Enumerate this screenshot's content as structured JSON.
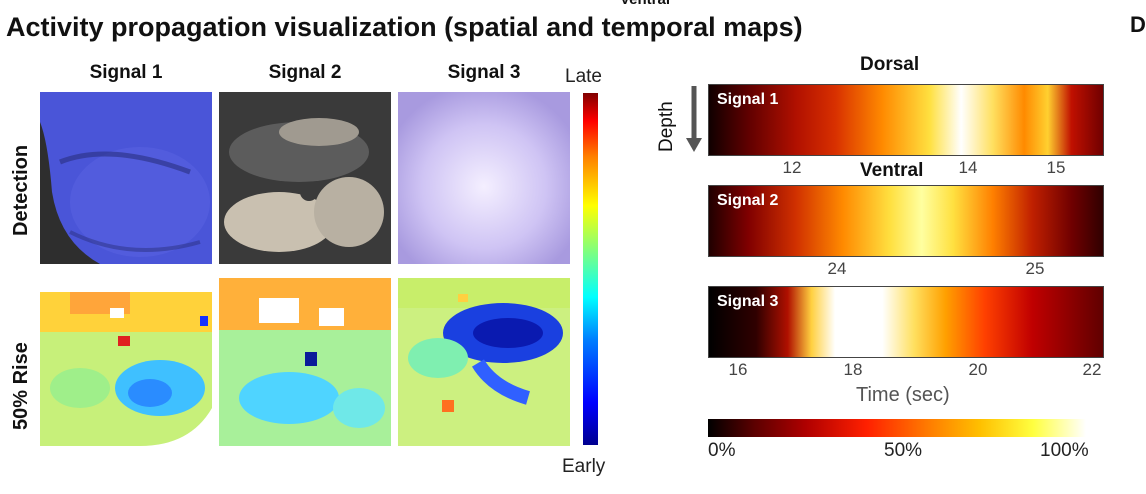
{
  "figure": {
    "title": "Activity propagation visualization (spatial and temporal maps)",
    "clipped_top_text": "Ventral",
    "clipped_right_text": "D"
  },
  "spatial": {
    "columns": [
      "Signal 1",
      "Signal 2",
      "Signal 3"
    ],
    "rows": [
      "Detection",
      "50% Rise"
    ],
    "colorbar": {
      "top_label": "Late",
      "bottom_label": "Early"
    }
  },
  "temporal": {
    "dorsal_label": "Dorsal",
    "ventral_label": "Ventral",
    "depth_label": "Depth",
    "panels": [
      {
        "label": "Signal 1",
        "ticks": [
          "12",
          "14",
          "15"
        ]
      },
      {
        "label": "Signal 2",
        "ticks": [
          "24",
          "25"
        ]
      },
      {
        "label": "Signal 3",
        "ticks": [
          "16",
          "18",
          "20",
          "22"
        ]
      }
    ],
    "xlabel": "Time (sec)",
    "colorbar_ticks": [
      "0%",
      "50%",
      "100%"
    ]
  },
  "colors": {
    "detection_signal1": "#4a55d8",
    "detection_signal2": "#8c8c8c",
    "detection_signal3": "#b9b0f0",
    "depth_arrow": "#555555"
  }
}
